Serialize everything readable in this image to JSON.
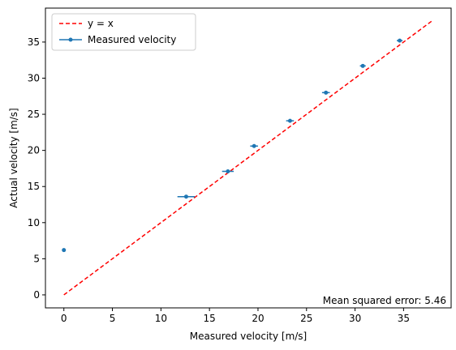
{
  "chart_data": {
    "type": "scatter",
    "xlabel": "Measured velocity [m/s]",
    "ylabel": "Actual velocity [m/s]",
    "xlim": [
      -1.9,
      39.9
    ],
    "ylim": [
      -1.8,
      39.7
    ],
    "xticks": [
      0,
      5,
      10,
      15,
      20,
      25,
      30,
      35
    ],
    "yticks": [
      0,
      5,
      10,
      15,
      20,
      25,
      30,
      35
    ],
    "grid": false,
    "legend_position": "top-left",
    "series": [
      {
        "name": "y = x",
        "style": "dashed-line",
        "color": "#ff0000",
        "x": [
          0,
          38
        ],
        "y": [
          0,
          38
        ]
      },
      {
        "name": "Measured velocity",
        "style": "markers-with-x-errorbars",
        "color": "#1f77b4",
        "points": [
          {
            "x": 0,
            "y": 6.2,
            "xerr": 0
          },
          {
            "x": 12.6,
            "y": 13.6,
            "xerr": 0.9
          },
          {
            "x": 16.9,
            "y": 17.1,
            "xerr": 0.6
          },
          {
            "x": 19.6,
            "y": 20.6,
            "xerr": 0.4
          },
          {
            "x": 23.3,
            "y": 24.1,
            "xerr": 0.4
          },
          {
            "x": 27.0,
            "y": 28.0,
            "xerr": 0.4
          },
          {
            "x": 30.8,
            "y": 31.7,
            "xerr": 0.3
          },
          {
            "x": 34.6,
            "y": 35.2,
            "xerr": 0.3
          }
        ]
      }
    ],
    "annotation": "Mean squared error: 5.46"
  }
}
